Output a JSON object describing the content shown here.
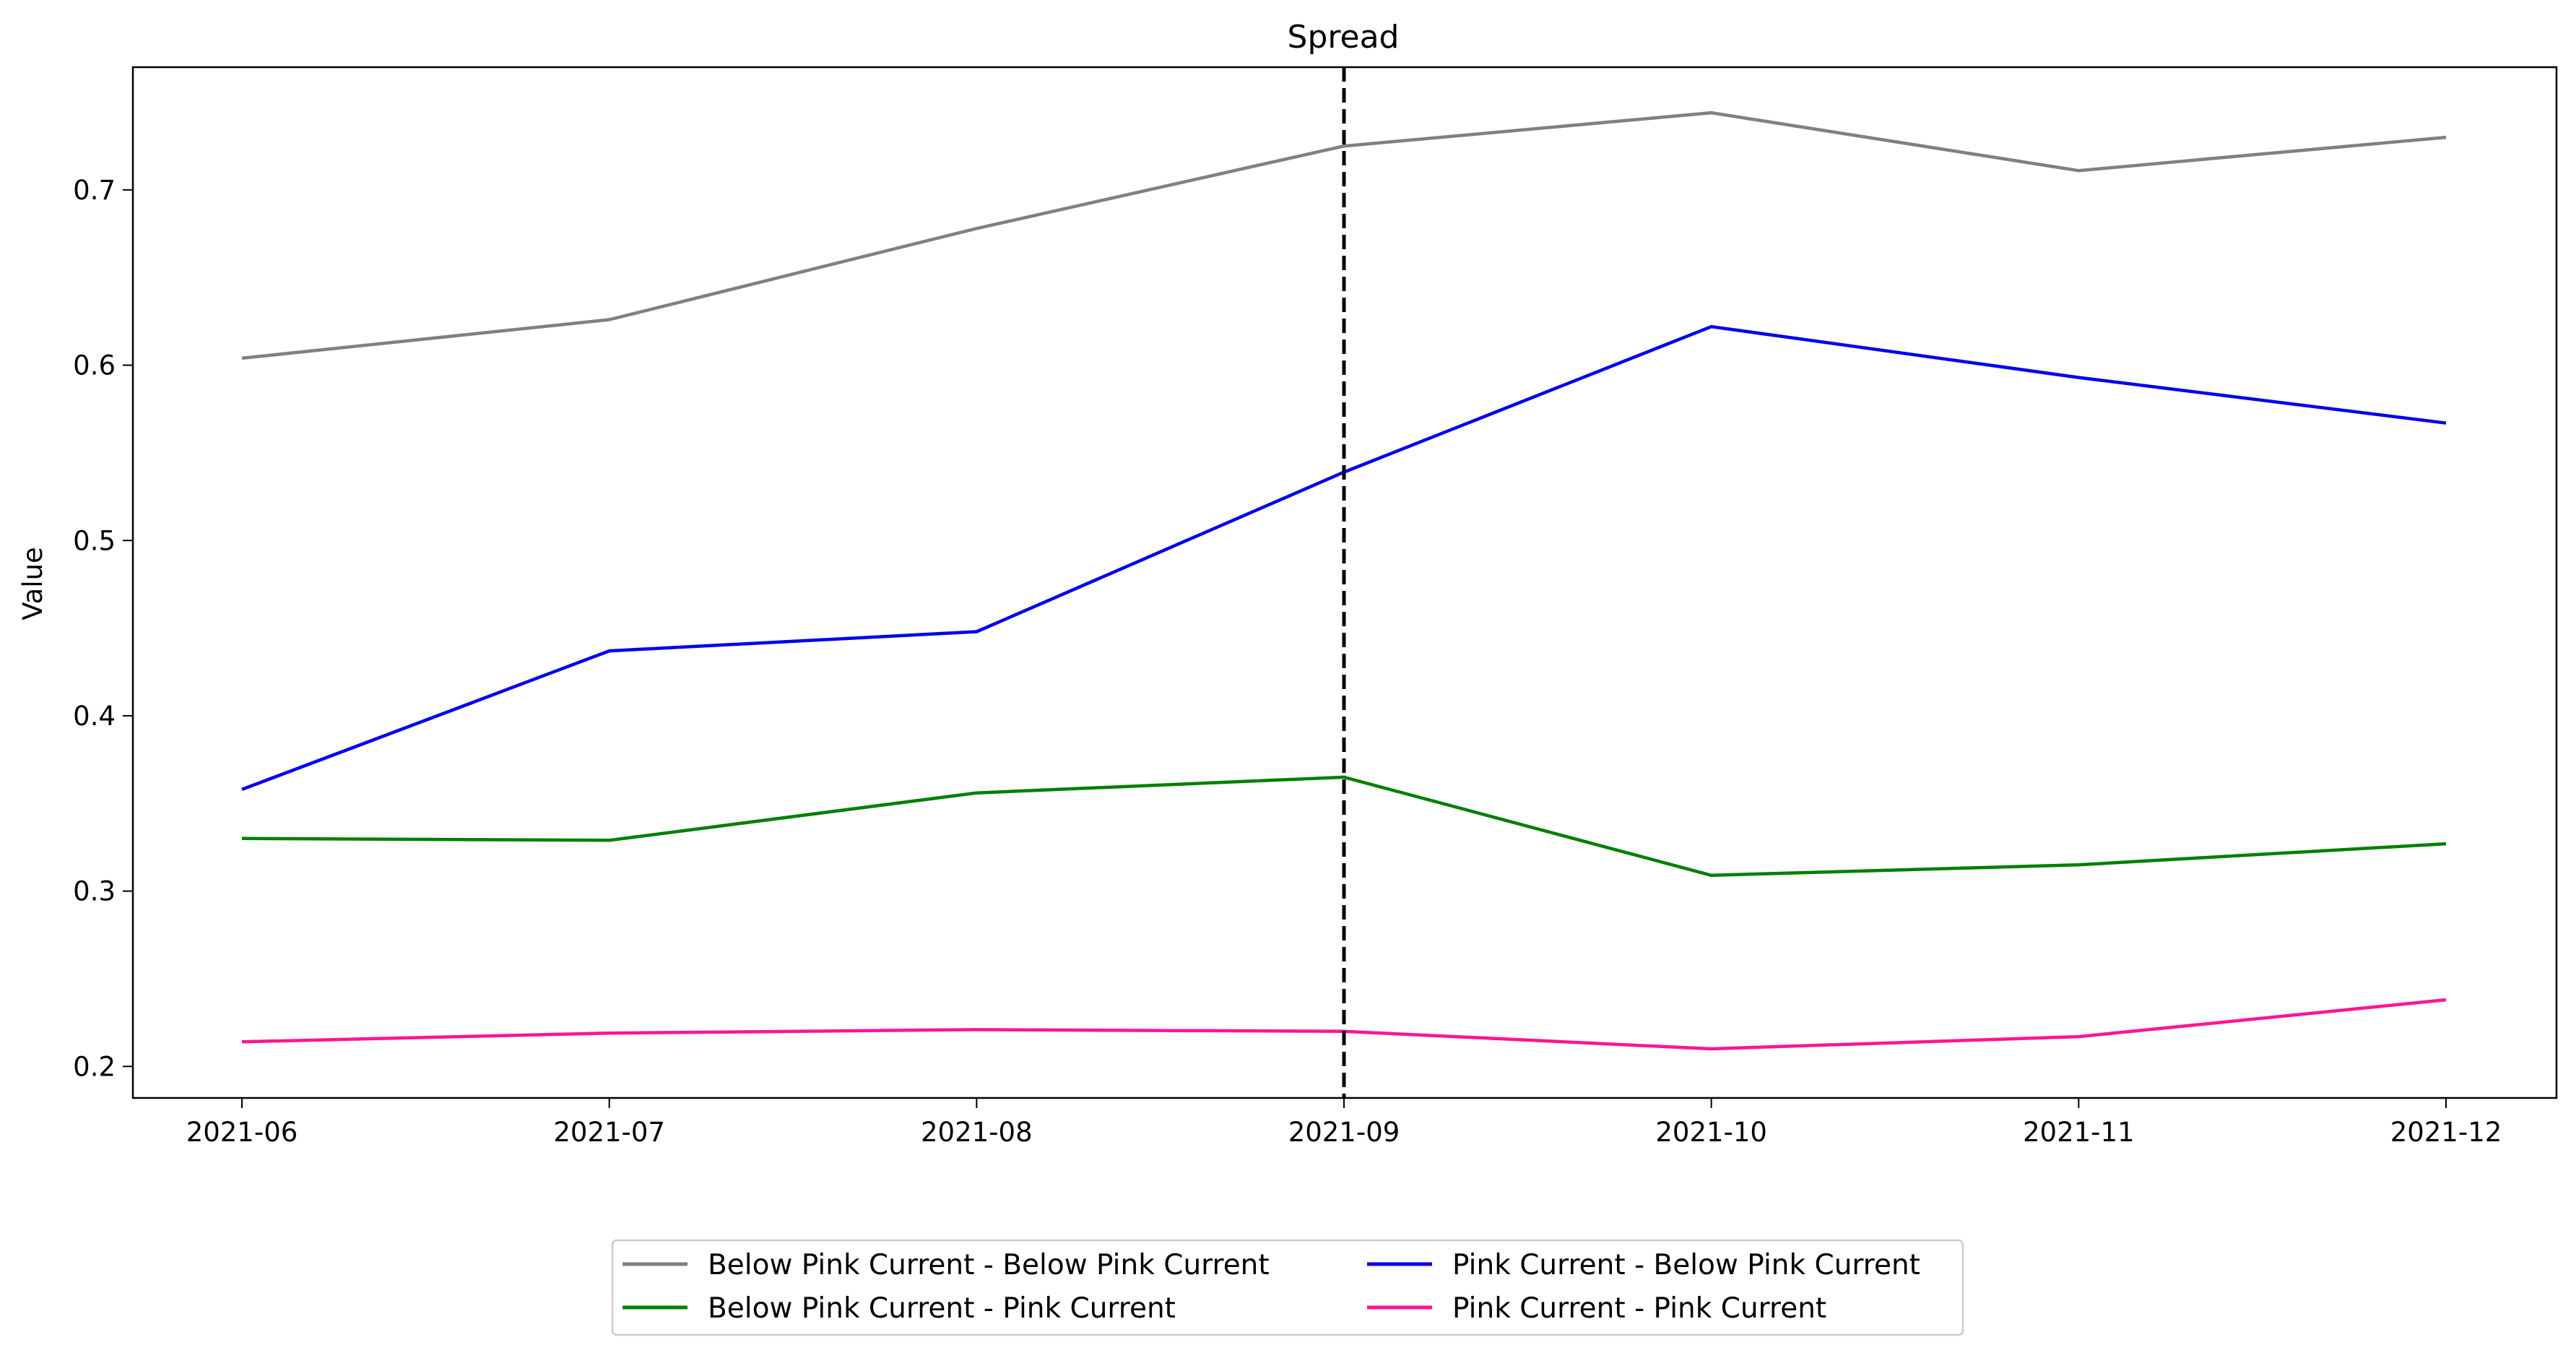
{
  "chart_data": {
    "type": "line",
    "title": "Spread",
    "xlabel": "",
    "ylabel": "Value",
    "x": [
      "2021-06",
      "2021-07",
      "2021-08",
      "2021-09",
      "2021-10",
      "2021-11",
      "2021-12"
    ],
    "ylim": [
      0.182,
      0.77
    ],
    "yticks": [
      0.2,
      0.3,
      0.4,
      0.5,
      0.6,
      0.7
    ],
    "ytick_labels": [
      "0.2",
      "0.3",
      "0.4",
      "0.5",
      "0.6",
      "0.7"
    ],
    "vline": {
      "x": "2021-09",
      "style": "dashed",
      "color": "#000000"
    },
    "grid": false,
    "legend_position": "bottom-center",
    "series": [
      {
        "name": "Below Pink Current - Below Pink Current",
        "color": "#808080",
        "values": [
          0.604,
          0.626,
          0.678,
          0.725,
          0.744,
          0.711,
          0.73
        ]
      },
      {
        "name": "Pink Current - Below Pink Current",
        "color": "#0000ee",
        "values": [
          0.358,
          0.437,
          0.448,
          0.539,
          0.622,
          0.593,
          0.567
        ]
      },
      {
        "name": "Below Pink Current - Pink Current",
        "color": "#008000",
        "values": [
          0.33,
          0.329,
          0.356,
          0.365,
          0.309,
          0.315,
          0.327
        ]
      },
      {
        "name": "Pink Current - Pink Current",
        "color": "#ff1493",
        "values": [
          0.214,
          0.219,
          0.221,
          0.22,
          0.21,
          0.217,
          0.238
        ]
      }
    ]
  }
}
